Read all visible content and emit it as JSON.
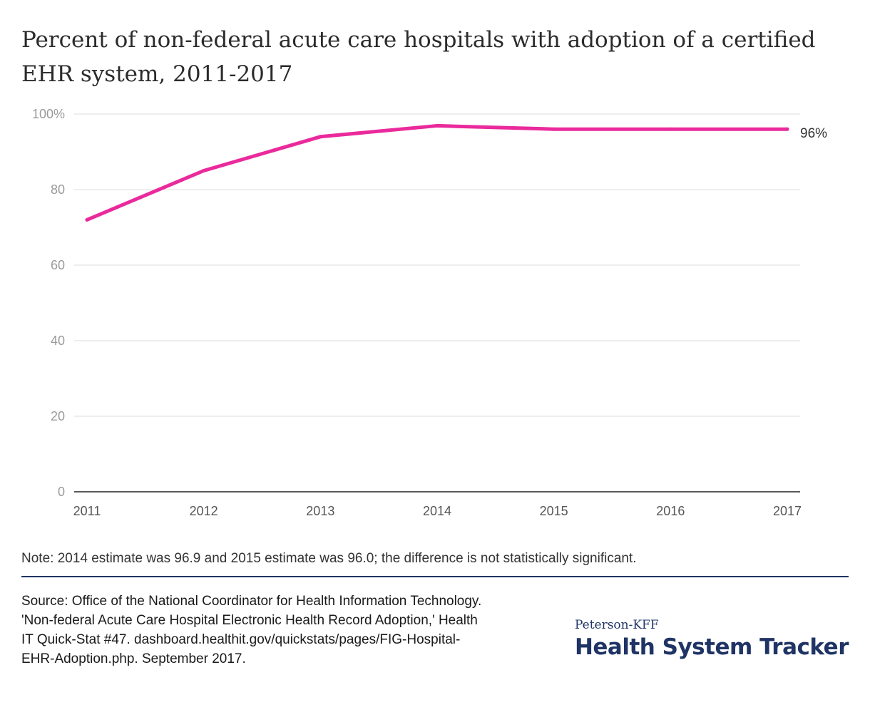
{
  "title": "Percent of non-federal acute care hospitals with adoption of a certified EHR system, 2011-2017",
  "chart_data": {
    "type": "line",
    "title": "Percent of non-federal acute care hospitals with adoption of a certified EHR system, 2011-2017",
    "x": [
      "2011",
      "2012",
      "2013",
      "2014",
      "2015",
      "2016",
      "2017"
    ],
    "series": [
      {
        "values": [
          72,
          85,
          94,
          96.9,
          96,
          96,
          96
        ],
        "color": "#ea2a9c",
        "end_label": "96%"
      }
    ],
    "yticks": [
      "100%",
      "80",
      "60",
      "40",
      "20",
      "0"
    ],
    "ytick_values": [
      100,
      80,
      60,
      40,
      20,
      0
    ],
    "ylim": [
      0,
      100
    ],
    "grid": true,
    "xlabel": "",
    "ylabel": ""
  },
  "note": "Note: 2014 estimate was 96.9 and 2015 estimate was 96.0; the difference is not statistically significant.",
  "source": "Source: Office of the National Coordinator for Health Information Technology. 'Non-federal Acute Care Hospital Electronic Health Record Adoption,' Health IT Quick-Stat #47. dashboard.healthit.gov/quickstats/pages/FIG-Hospital-EHR-Adoption.php. September 2017.",
  "logo": {
    "small": "Peterson-KFF",
    "big": "Health System Tracker"
  },
  "colors": {
    "line": "#ea2a9c",
    "brand": "#1f3464",
    "grid": "#dddddd"
  }
}
